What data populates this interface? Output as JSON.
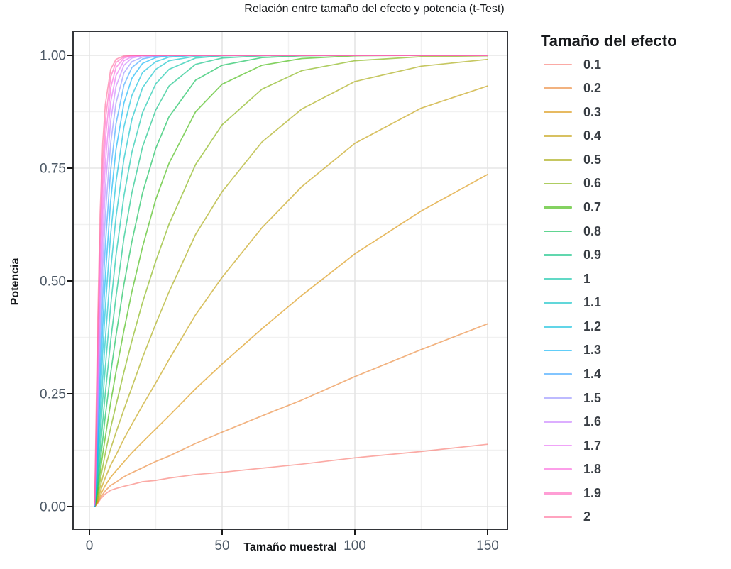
{
  "title": "Relación entre tamaño del efecto y potencia (t-Test)",
  "axes": {
    "x_label": "Tamaño muestral",
    "y_label": "Potencia"
  },
  "legend": {
    "title": "Tamaño del efecto",
    "position": "right"
  },
  "colors": {
    "panel_border": "#333539",
    "grid_major": "#e5e5e5",
    "grid_minor": "#f1f1f1",
    "tick_mark": "#1a1a1a",
    "tick_text": "#4d5966",
    "title_text": "#16181b"
  },
  "chart_data": {
    "type": "line",
    "title": "Relación entre tamaño del efecto y potencia (t-Test)",
    "xlabel": "Tamaño muestral",
    "ylabel": "Potencia",
    "legend_title": "Tamaño del efecto",
    "legend_position": "right",
    "grid": "major+minor",
    "xlim": [
      0,
      150
    ],
    "ylim": [
      0.0,
      1.0
    ],
    "x_tick_values": [
      0,
      50,
      100,
      150
    ],
    "x_tick_labels": [
      "0",
      "50",
      "100",
      "150"
    ],
    "y_tick_values": [
      0.0,
      0.25,
      0.5,
      0.75,
      1.0
    ],
    "y_tick_labels": [
      "0.00",
      "0.25",
      "0.50",
      "0.75",
      "1.00"
    ],
    "x_minor_gridlines": [
      25,
      75,
      125
    ],
    "y_minor_gridlines": [
      0.125,
      0.375,
      0.625,
      0.875
    ],
    "x": [
      2,
      3,
      4,
      5,
      6,
      8,
      10,
      13,
      16,
      20,
      25,
      30,
      40,
      50,
      65,
      80,
      100,
      125,
      150
    ],
    "series": [
      {
        "name": "0.1",
        "color": "#F8766D",
        "values": [
          0.0,
          0.006,
          0.015,
          0.022,
          0.028,
          0.036,
          0.04,
          0.045,
          0.049,
          0.055,
          0.058,
          0.063,
          0.071,
          0.076,
          0.085,
          0.094,
          0.108,
          0.122,
          0.138
        ]
      },
      {
        "name": "0.2",
        "color": "#EA8331",
        "values": [
          0.0,
          0.007,
          0.018,
          0.027,
          0.035,
          0.047,
          0.054,
          0.066,
          0.075,
          0.086,
          0.1,
          0.112,
          0.14,
          0.165,
          0.201,
          0.236,
          0.288,
          0.348,
          0.405
        ]
      },
      {
        "name": "0.3",
        "color": "#D89000",
        "values": [
          0.0,
          0.009,
          0.023,
          0.036,
          0.047,
          0.065,
          0.079,
          0.099,
          0.119,
          0.143,
          0.172,
          0.201,
          0.261,
          0.316,
          0.394,
          0.468,
          0.56,
          0.655,
          0.736
        ]
      },
      {
        "name": "0.4",
        "color": "#C09B00",
        "values": [
          0.0,
          0.012,
          0.031,
          0.049,
          0.064,
          0.092,
          0.114,
          0.15,
          0.182,
          0.224,
          0.274,
          0.326,
          0.425,
          0.508,
          0.618,
          0.709,
          0.805,
          0.883,
          0.932
        ]
      },
      {
        "name": "0.5",
        "color": "#A3A500",
        "values": [
          0.0,
          0.015,
          0.042,
          0.065,
          0.088,
          0.128,
          0.164,
          0.215,
          0.264,
          0.33,
          0.405,
          0.476,
          0.603,
          0.698,
          0.808,
          0.881,
          0.942,
          0.976,
          0.991
        ]
      },
      {
        "name": "0.6",
        "color": "#7CAE00",
        "values": [
          0.0,
          0.021,
          0.056,
          0.088,
          0.118,
          0.174,
          0.224,
          0.298,
          0.367,
          0.452,
          0.544,
          0.626,
          0.758,
          0.846,
          0.925,
          0.966,
          0.988,
          0.997,
          0.999
        ]
      },
      {
        "name": "0.7",
        "color": "#39B600",
        "values": [
          0.0,
          0.028,
          0.073,
          0.116,
          0.154,
          0.23,
          0.298,
          0.39,
          0.476,
          0.575,
          0.681,
          0.761,
          0.875,
          0.936,
          0.978,
          0.993,
          0.999,
          1.0,
          1.0
        ]
      },
      {
        "name": "0.8",
        "color": "#00BB4E",
        "values": [
          0.0,
          0.037,
          0.094,
          0.147,
          0.201,
          0.295,
          0.378,
          0.492,
          0.587,
          0.695,
          0.794,
          0.864,
          0.945,
          0.978,
          0.995,
          0.999,
          1.0,
          1.0,
          1.0
        ]
      },
      {
        "name": "0.9",
        "color": "#00BF7D",
        "values": [
          0.0,
          0.047,
          0.12,
          0.187,
          0.251,
          0.367,
          0.464,
          0.595,
          0.695,
          0.797,
          0.879,
          0.932,
          0.98,
          0.994,
          0.999,
          1.0,
          1.0,
          1.0,
          1.0
        ]
      },
      {
        "name": "1",
        "color": "#00C1A3",
        "values": [
          0.0,
          0.06,
          0.15,
          0.236,
          0.309,
          0.444,
          0.556,
          0.688,
          0.785,
          0.873,
          0.937,
          0.969,
          0.994,
          0.999,
          1.0,
          1.0,
          1.0,
          1.0,
          1.0
        ]
      },
      {
        "name": "1.1",
        "color": "#00BFC4",
        "values": [
          0.001,
          0.077,
          0.187,
          0.284,
          0.371,
          0.524,
          0.641,
          0.77,
          0.858,
          0.928,
          0.969,
          0.988,
          0.998,
          1.0,
          1.0,
          1.0,
          1.0,
          1.0,
          1.0
        ]
      },
      {
        "name": "1.2",
        "color": "#00BBDA",
        "values": [
          0.001,
          0.096,
          0.227,
          0.341,
          0.44,
          0.603,
          0.719,
          0.841,
          0.911,
          0.962,
          0.986,
          0.996,
          1.0,
          1.0,
          1.0,
          1.0,
          1.0,
          1.0,
          1.0
        ]
      },
      {
        "name": "1.3",
        "color": "#00B0F6",
        "values": [
          0.001,
          0.118,
          0.271,
          0.397,
          0.508,
          0.677,
          0.791,
          0.894,
          0.949,
          0.982,
          0.995,
          0.999,
          1.0,
          1.0,
          1.0,
          1.0,
          1.0,
          1.0,
          1.0
        ]
      },
      {
        "name": "1.4",
        "color": "#35A2FF",
        "values": [
          0.002,
          0.145,
          0.319,
          0.46,
          0.579,
          0.745,
          0.848,
          0.934,
          0.973,
          0.992,
          0.998,
          1.0,
          1.0,
          1.0,
          1.0,
          1.0,
          1.0,
          1.0,
          1.0
        ]
      },
      {
        "name": "1.5",
        "color": "#9590FF",
        "values": [
          0.003,
          0.174,
          0.371,
          0.528,
          0.644,
          0.805,
          0.894,
          0.961,
          0.986,
          0.996,
          0.999,
          1.0,
          1.0,
          1.0,
          1.0,
          1.0,
          1.0,
          1.0,
          1.0
        ]
      },
      {
        "name": "1.6",
        "color": "#C77CFF",
        "values": [
          0.003,
          0.206,
          0.429,
          0.587,
          0.705,
          0.855,
          0.931,
          0.978,
          0.994,
          0.999,
          1.0,
          1.0,
          1.0,
          1.0,
          1.0,
          1.0,
          1.0,
          1.0,
          1.0
        ]
      },
      {
        "name": "1.7",
        "color": "#E76BF3",
        "values": [
          0.005,
          0.245,
          0.484,
          0.648,
          0.761,
          0.896,
          0.955,
          0.988,
          0.997,
          1.0,
          1.0,
          1.0,
          1.0,
          1.0,
          1.0,
          1.0,
          1.0,
          1.0,
          1.0
        ]
      },
      {
        "name": "1.8",
        "color": "#FA62DB",
        "values": [
          0.006,
          0.284,
          0.54,
          0.705,
          0.813,
          0.928,
          0.973,
          0.994,
          0.999,
          1.0,
          1.0,
          1.0,
          1.0,
          1.0,
          1.0,
          1.0,
          1.0,
          1.0,
          1.0
        ]
      },
      {
        "name": "1.9",
        "color": "#FF62BC",
        "values": [
          0.008,
          0.326,
          0.595,
          0.755,
          0.855,
          0.952,
          0.984,
          0.997,
          1.0,
          1.0,
          1.0,
          1.0,
          1.0,
          1.0,
          1.0,
          1.0,
          1.0,
          1.0,
          1.0
        ]
      },
      {
        "name": "2",
        "color": "#FF6A98",
        "values": [
          0.011,
          0.371,
          0.648,
          0.805,
          0.891,
          0.969,
          0.991,
          0.999,
          1.0,
          1.0,
          1.0,
          1.0,
          1.0,
          1.0,
          1.0,
          1.0,
          1.0,
          1.0,
          1.0
        ]
      }
    ]
  }
}
